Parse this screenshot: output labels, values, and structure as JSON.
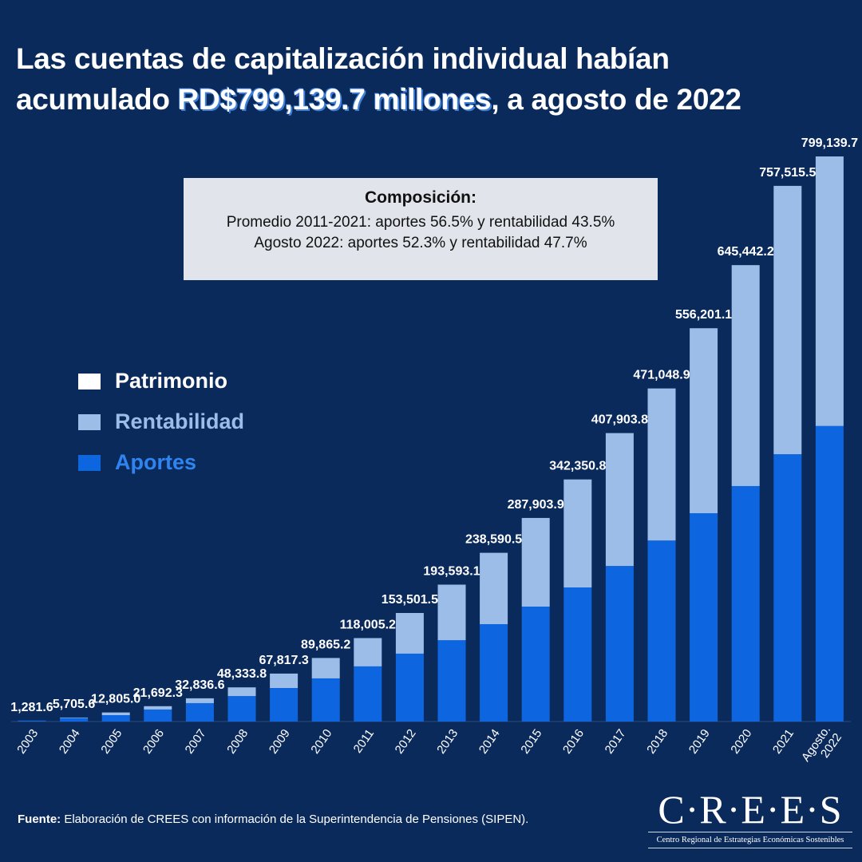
{
  "title": {
    "line1": "Las cuentas de capitalización individual habían",
    "line2_pre": "acumulado ",
    "line2_highlight": "RD$799,139.7 millones",
    "line2_post": ", a agosto de 2022"
  },
  "composition": {
    "heading": "Composición:",
    "line1": "Promedio 2011-2021: aportes 56.5% y rentabilidad 43.5%",
    "line2": "Agosto 2022: aportes 52.3% y rentabilidad 47.7%"
  },
  "source": {
    "label": "Fuente:",
    "text": " Elaboración de CREES con información de la Superintendencia de Pensiones (SIPEN)."
  },
  "logo": {
    "name": "C·R·E·E·S",
    "tagline": "Centro Regional de Estrategias Económicas Sostenibles"
  },
  "colors": {
    "background": "#0b2a5c",
    "aportes": "#0d66e0",
    "rentabilidad": "#9bbde8",
    "patrimonio": "#ffffff"
  },
  "chart_data": {
    "type": "bar",
    "stacked": true,
    "categories": [
      "2003",
      "2004",
      "2005",
      "2006",
      "2007",
      "2008",
      "2009",
      "2010",
      "2011",
      "2012",
      "2013",
      "2014",
      "2015",
      "2016",
      "2017",
      "2018",
      "2019",
      "2020",
      "2021",
      "Agosto. 2022"
    ],
    "totals": [
      1281.6,
      5705.6,
      12805.0,
      21692.3,
      32836.6,
      48333.8,
      67817.3,
      89865.2,
      118005.2,
      153501.5,
      193593.1,
      238590.5,
      287903.9,
      342350.8,
      407903.8,
      471048.9,
      556201.1,
      645442.2,
      757515.5,
      799139.7
    ],
    "total_labels": [
      "1,281.6",
      "5,705.6",
      "12,805.0",
      "21,692.3",
      "32,836.6",
      "48,333.8",
      "67,817.3",
      "89,865.2",
      "118,005.2",
      "153,501.5",
      "193,593.1",
      "238,590.5",
      "287,903.9",
      "342,350.8",
      "407,903.8",
      "471,048.9",
      "556,201.1",
      "645,442.2",
      "757,515.5",
      "799,139.7"
    ],
    "series": [
      {
        "name": "Aportes",
        "values": [
          1200,
          5000,
          9000,
          17000,
          26000,
          36000,
          47400,
          61000,
          78000,
          96000,
          115000,
          137700,
          162500,
          189600,
          220000,
          256000,
          294600,
          333000,
          378000,
          417950
        ]
      },
      {
        "name": "Rentabilidad",
        "values": [
          81.6,
          705.6,
          3805.0,
          4692.3,
          6836.6,
          12333.8,
          20417.3,
          28865.2,
          40005.2,
          57501.5,
          78593.1,
          100890.5,
          125403.9,
          152750.8,
          187903.8,
          215048.9,
          261601.1,
          312442.2,
          379515.5,
          381189.7
        ]
      }
    ],
    "legend": [
      {
        "name": "Patrimonio"
      },
      {
        "name": "Rentabilidad"
      },
      {
        "name": "Aportes"
      }
    ],
    "legend_placement": "left",
    "ylim": [
      0,
      800000
    ],
    "grid": false,
    "xlabel": "",
    "ylabel": ""
  }
}
